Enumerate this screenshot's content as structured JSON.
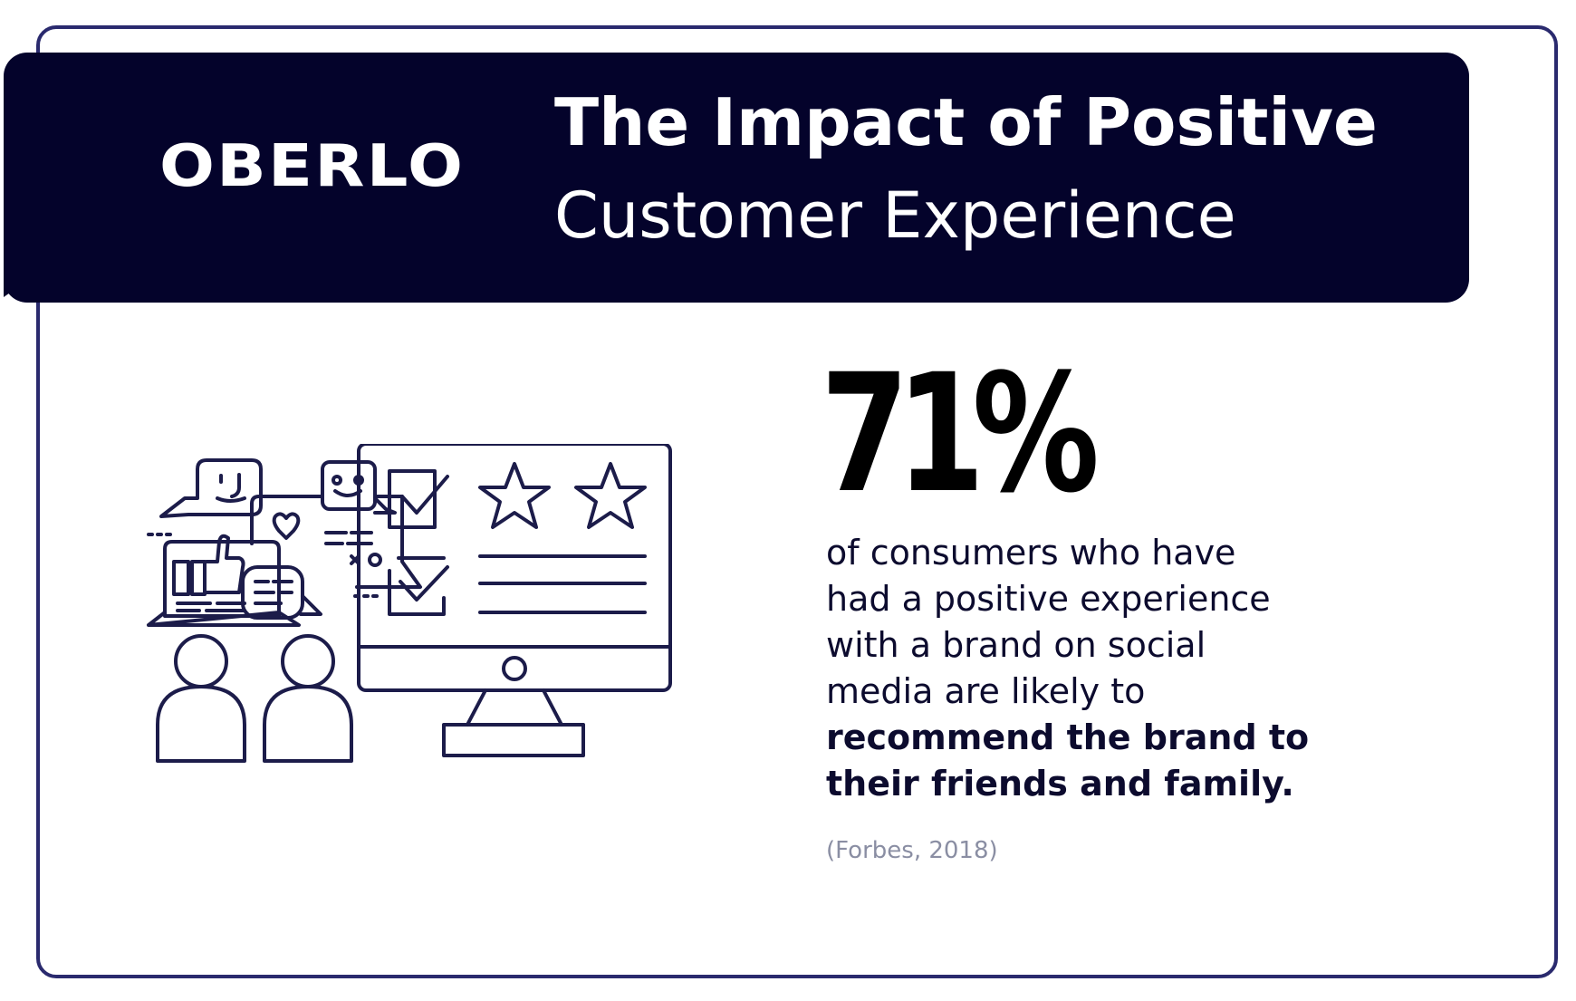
{
  "brand": {
    "logo_text": "OBERLO"
  },
  "header": {
    "title_line1": "The Impact of Positive",
    "title_line2": "Customer Experience"
  },
  "stat": {
    "value": "71%",
    "description_lines": [
      "of consumers who have",
      "had a positive experience",
      "with a brand on social",
      "media are likely to"
    ],
    "emphasis_lines": [
      "recommend the brand to",
      "their friends and family."
    ],
    "source": "(Forbes, 2018)"
  },
  "colors": {
    "navy": "#04032b",
    "border": "#2a2a6e",
    "ink": "#1c1c4a",
    "source_gray": "#8a8ea3"
  },
  "illustration": {
    "icons": [
      "chat-bubble-face-icon",
      "chat-bubble-smile-icon",
      "heart-icon",
      "laptop-thumbs-up-icon",
      "message-icon",
      "monitor-review-icon",
      "star-icon",
      "checkbox-icon",
      "person-icon"
    ]
  }
}
